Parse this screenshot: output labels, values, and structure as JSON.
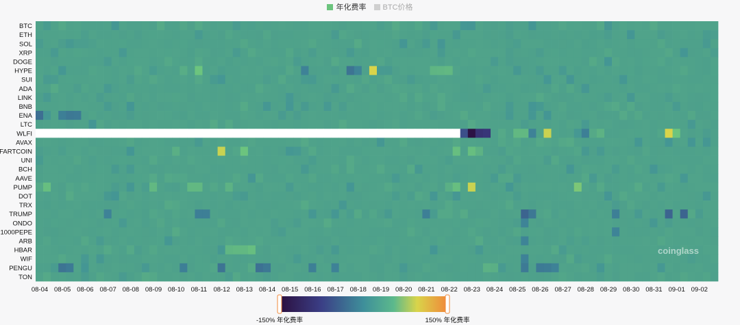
{
  "legend": [
    {
      "label": "年化费率",
      "color": "#6cc47e"
    },
    {
      "label": "BTC价格",
      "color": "#d0d0d0",
      "inactive": true
    }
  ],
  "watermark": "coinglass",
  "colorbar": {
    "min_label": "-150% 年化费率",
    "max_label": "150% 年化费率",
    "min": -150,
    "max": 150
  },
  "chart_data": {
    "type": "heatmap",
    "unit": "annualized funding rate (%)",
    "base_value": 10.9,
    "y_categories": [
      "BTC",
      "ETH",
      "SOL",
      "XRP",
      "DOGE",
      "HYPE",
      "SUI",
      "ADA",
      "LINK",
      "BNB",
      "ENA",
      "LTC",
      "WLFI",
      "AVAX",
      "FARTCOIN",
      "UNI",
      "BCH",
      "AAVE",
      "PUMP",
      "DOT",
      "TRX",
      "TRUMP",
      "ONDO",
      "1000PEPE",
      "ARB",
      "HBAR",
      "WIF",
      "PENGU",
      "TON"
    ],
    "x_ticks": [
      "08-04",
      "08-05",
      "08-06",
      "08-07",
      "08-08",
      "08-09",
      "08-10",
      "08-11",
      "08-12",
      "08-13",
      "08-14",
      "08-15",
      "08-16",
      "08-17",
      "08-18",
      "08-19",
      "08-20",
      "08-21",
      "08-22",
      "08-23",
      "08-24",
      "08-25",
      "08-26",
      "08-27",
      "08-28",
      "08-29",
      "08-30",
      "08-31",
      "09-01",
      "09-02"
    ],
    "periods_per_day": 3,
    "no_data": [
      {
        "row": "WLFI",
        "from_day": "08-04",
        "to_day": "08-23",
        "to_index_excl": 56
      }
    ],
    "highlights": [
      {
        "row": "HYPE",
        "i": 21,
        "v": 40
      },
      {
        "row": "HYPE",
        "i": 41,
        "v": -25
      },
      {
        "row": "HYPE",
        "i": 42,
        "v": -10
      },
      {
        "row": "HYPE",
        "i": 44,
        "v": 75
      },
      {
        "row": "HYPE",
        "i": 35,
        "v": -12
      },
      {
        "row": "HYPE",
        "i": 19,
        "v": 20
      },
      {
        "row": "HYPE",
        "i": 54,
        "v": 30
      },
      {
        "row": "HYPE",
        "i": 53,
        "v": 28
      },
      {
        "row": "HYPE",
        "i": 52,
        "v": 27
      },
      {
        "row": "ENA",
        "i": 0,
        "v": -30
      },
      {
        "row": "ENA",
        "i": 3,
        "v": -15
      },
      {
        "row": "ENA",
        "i": 4,
        "v": -22
      },
      {
        "row": "ENA",
        "i": 5,
        "v": -20
      },
      {
        "row": "WLFI",
        "i": 57,
        "v": -145
      },
      {
        "row": "WLFI",
        "i": 58,
        "v": -95
      },
      {
        "row": "WLFI",
        "i": 59,
        "v": -90
      },
      {
        "row": "WLFI",
        "i": 56,
        "v": -60
      },
      {
        "row": "WLFI",
        "i": 63,
        "v": 30
      },
      {
        "row": "WLFI",
        "i": 64,
        "v": 30
      },
      {
        "row": "WLFI",
        "i": 67,
        "v": 70
      },
      {
        "row": "WLFI",
        "i": 65,
        "v": -12
      },
      {
        "row": "WLFI",
        "i": 72,
        "v": -15
      },
      {
        "row": "WLFI",
        "i": 83,
        "v": 75
      },
      {
        "row": "WLFI",
        "i": 84,
        "v": 40
      },
      {
        "row": "WLFI",
        "i": 74,
        "v": 25
      },
      {
        "row": "FARTCOIN",
        "i": 24,
        "v": 70
      },
      {
        "row": "FARTCOIN",
        "i": 27,
        "v": 40
      },
      {
        "row": "FARTCOIN",
        "i": 55,
        "v": 35
      },
      {
        "row": "FARTCOIN",
        "i": 57,
        "v": 35
      },
      {
        "row": "FARTCOIN",
        "i": 58,
        "v": 25
      },
      {
        "row": "FARTCOIN",
        "i": 18,
        "v": 22
      },
      {
        "row": "PUMP",
        "i": 1,
        "v": 35
      },
      {
        "row": "PUMP",
        "i": 15,
        "v": 30
      },
      {
        "row": "PUMP",
        "i": 20,
        "v": 30
      },
      {
        "row": "PUMP",
        "i": 21,
        "v": 30
      },
      {
        "row": "PUMP",
        "i": 55,
        "v": 35
      },
      {
        "row": "PUMP",
        "i": 57,
        "v": 70
      },
      {
        "row": "PUMP",
        "i": 71,
        "v": 45
      },
      {
        "row": "PUMP",
        "i": 25,
        "v": 25
      },
      {
        "row": "PUMP",
        "i": 54,
        "v": 22
      },
      {
        "row": "TRUMP",
        "i": 64,
        "v": -40
      },
      {
        "row": "TRUMP",
        "i": 83,
        "v": -40
      },
      {
        "row": "TRUMP",
        "i": 85,
        "v": -40
      },
      {
        "row": "TRUMP",
        "i": 65,
        "v": -22
      },
      {
        "row": "TRUMP",
        "i": 9,
        "v": -12
      },
      {
        "row": "TRUMP",
        "i": 21,
        "v": -15
      },
      {
        "row": "TRUMP",
        "i": 22,
        "v": -15
      },
      {
        "row": "TRUMP",
        "i": 51,
        "v": -15
      },
      {
        "row": "TRUMP",
        "i": 76,
        "v": -15
      },
      {
        "row": "HBAR",
        "i": 25,
        "v": 28
      },
      {
        "row": "HBAR",
        "i": 26,
        "v": 30
      },
      {
        "row": "HBAR",
        "i": 27,
        "v": 30
      },
      {
        "row": "HBAR",
        "i": 28,
        "v": 35
      },
      {
        "row": "PENGU",
        "i": 3,
        "v": -25
      },
      {
        "row": "PENGU",
        "i": 4,
        "v": -20
      },
      {
        "row": "PENGU",
        "i": 24,
        "v": -25
      },
      {
        "row": "PENGU",
        "i": 29,
        "v": -28
      },
      {
        "row": "PENGU",
        "i": 30,
        "v": -22
      },
      {
        "row": "PENGU",
        "i": 19,
        "v": -15
      },
      {
        "row": "PENGU",
        "i": 36,
        "v": -15
      },
      {
        "row": "PENGU",
        "i": 39,
        "v": -12
      },
      {
        "row": "PENGU",
        "i": 59,
        "v": 24
      },
      {
        "row": "PENGU",
        "i": 60,
        "v": 22
      },
      {
        "row": "PENGU",
        "i": 64,
        "v": -20
      },
      {
        "row": "PENGU",
        "i": 66,
        "v": -20
      },
      {
        "row": "PENGU",
        "i": 67,
        "v": -18
      },
      {
        "row": "PENGU",
        "i": 68,
        "v": -12
      },
      {
        "row": "WIF",
        "i": 64,
        "v": -12
      },
      {
        "row": "ONDO",
        "i": 64,
        "v": -10
      },
      {
        "row": "1000PEPE",
        "i": 76,
        "v": -10
      },
      {
        "row": "ARB",
        "i": 64,
        "v": -10
      }
    ]
  }
}
